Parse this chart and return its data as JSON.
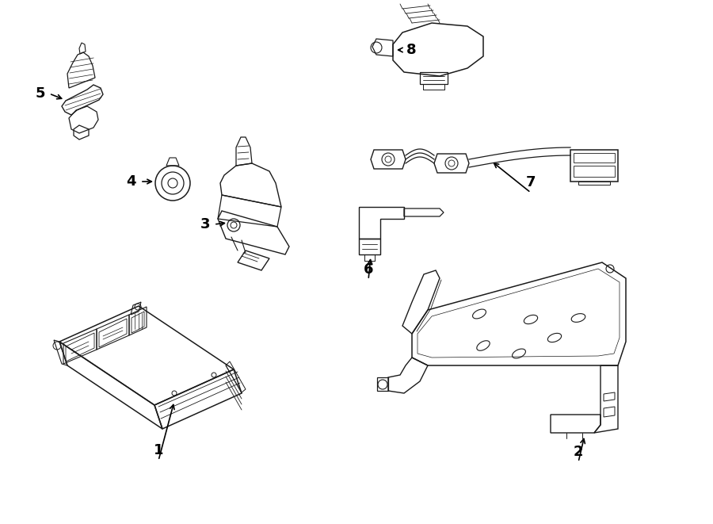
{
  "bg_color": "#ffffff",
  "line_color": "#1a1a1a",
  "text_color": "#000000",
  "fig_width": 9.0,
  "fig_height": 6.61,
  "dpi": 100,
  "lw": 0.9
}
